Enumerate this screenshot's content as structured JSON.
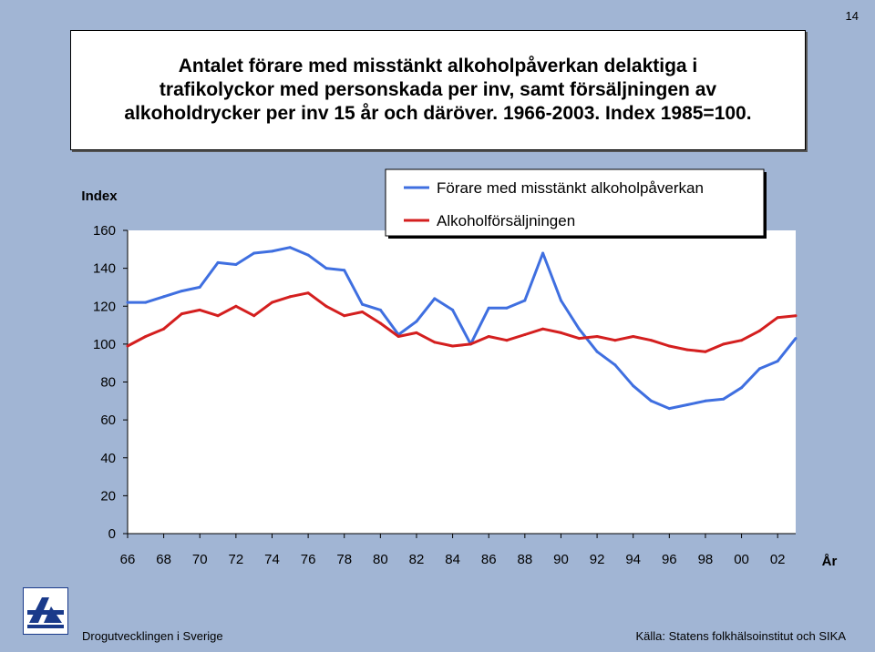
{
  "page_number": "14",
  "title": "Antalet förare med misstänkt alkoholpåverkan delaktiga i trafikolyckor med personskada per inv, samt försäljningen av alkoholdrycker per inv 15 år och däröver. 1966-2003. Index 1985=100.",
  "footer": {
    "left": "Drogutvecklingen i Sverige",
    "right": "Källa: Statens folkhälsoinstitut och SIKA"
  },
  "colors": {
    "background": "#a1b5d4",
    "plot_background": "#ffffff",
    "blue_series": "#3f6fe0",
    "red_series": "#d41f1f"
  },
  "logo": {
    "icon": "can-logo-icon"
  },
  "chart_data": {
    "type": "line",
    "ylabel": "Index",
    "xlabel": "År",
    "ylim": [
      0,
      160
    ],
    "yticks": [
      0,
      20,
      40,
      60,
      80,
      100,
      120,
      140,
      160
    ],
    "xlim": [
      1966,
      2003
    ],
    "xtick_labels": [
      "66",
      "68",
      "70",
      "72",
      "74",
      "76",
      "78",
      "80",
      "82",
      "84",
      "86",
      "88",
      "90",
      "92",
      "94",
      "96",
      "98",
      "00",
      "02"
    ],
    "grid": false,
    "legend_position": "top",
    "x": [
      1966,
      1967,
      1968,
      1969,
      1970,
      1971,
      1972,
      1973,
      1974,
      1975,
      1976,
      1977,
      1978,
      1979,
      1980,
      1981,
      1982,
      1983,
      1984,
      1985,
      1986,
      1987,
      1988,
      1989,
      1990,
      1991,
      1992,
      1993,
      1994,
      1995,
      1996,
      1997,
      1998,
      1999,
      2000,
      2001,
      2002,
      2003
    ],
    "series": [
      {
        "name": "Förare med misstänkt alkoholpåverkan",
        "color": "#3f6fe0",
        "values": [
          122,
          122,
          125,
          128,
          130,
          143,
          142,
          148,
          149,
          151,
          147,
          140,
          139,
          121,
          118,
          105,
          112,
          124,
          118,
          100,
          119,
          119,
          123,
          148,
          123,
          108,
          96,
          89,
          78,
          70,
          66,
          68,
          70,
          71,
          77,
          87,
          91,
          103
        ]
      },
      {
        "name": "Alkoholförsäljningen",
        "color": "#d41f1f",
        "values": [
          99,
          104,
          108,
          116,
          118,
          115,
          120,
          115,
          122,
          125,
          127,
          120,
          115,
          117,
          111,
          104,
          106,
          101,
          99,
          100,
          104,
          102,
          105,
          108,
          106,
          103,
          104,
          102,
          104,
          102,
          99,
          97,
          96,
          100,
          102,
          107,
          114,
          115
        ]
      }
    ]
  }
}
